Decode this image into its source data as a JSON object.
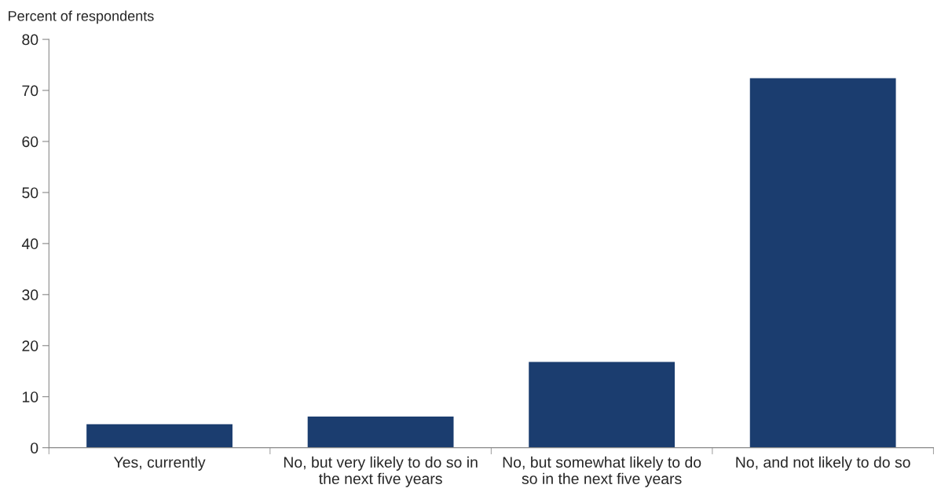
{
  "chart_data": {
    "type": "bar",
    "ylabel": "Percent of respondents",
    "categories": [
      "Yes, currently",
      "No, but very likely to do so in\nthe next five years",
      "No, but somewhat likely to do\nso in the next five years",
      "No, and not likely to do so"
    ],
    "values": [
      4.6,
      6.1,
      16.8,
      72.4
    ],
    "color": "#1b3d6f",
    "ylim": [
      0,
      80
    ],
    "yticks": [
      0,
      10,
      20,
      30,
      40,
      50,
      60,
      70,
      80
    ],
    "grid": false,
    "legend": false
  }
}
